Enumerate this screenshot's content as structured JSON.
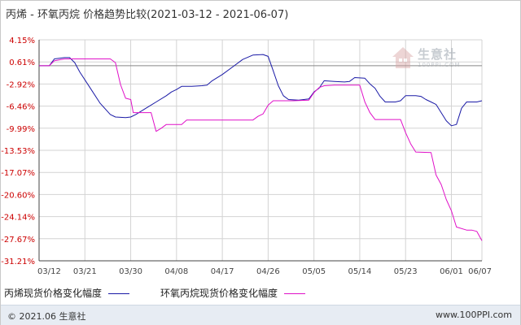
{
  "title": "丙烯 - 环氧丙烷 价格趋势比较(2021-03-12 - 2021-06-07)",
  "footer": {
    "copyright": "© 2021.06 生意社",
    "site": "www.100PPI.com"
  },
  "watermark": {
    "brand": "生意社",
    "url": "100PPI.COM"
  },
  "colors": {
    "series1": "#1a1aa6",
    "series2": "#e010c8",
    "grid": "#d3d3d3",
    "zero_line": "#888888",
    "axis": "#444444",
    "tick_label": "#cc0000"
  },
  "chart_data": {
    "type": "line",
    "x_labels": [
      "03/12",
      "03/21",
      "03/30",
      "04/08",
      "04/17",
      "04/26",
      "05/05",
      "05/14",
      "05/23",
      "06/01",
      "06/07"
    ],
    "x_days": [
      0,
      9,
      18,
      27,
      36,
      45,
      54,
      63,
      72,
      81,
      87
    ],
    "y_ticks": [
      4.15,
      0.61,
      -2.92,
      -6.46,
      -9.99,
      -13.53,
      -17.07,
      -20.6,
      -24.14,
      -27.67,
      -31.21
    ],
    "y_tick_labels": [
      "4.15%",
      "0.61%",
      "-2.92%",
      "-6.46%",
      "-9.99%",
      "-13.53%",
      "-17.07%",
      "-20.60%",
      "-24.14%",
      "-27.67%",
      "-31.21%"
    ],
    "ylim": [
      -31.21,
      4.15
    ],
    "xlim": [
      0,
      87
    ],
    "grid": true,
    "legend_position": "bottom",
    "series": [
      {
        "name": "丙烯现货价格变化幅度",
        "points": [
          [
            0,
            0
          ],
          [
            2,
            0
          ],
          [
            3,
            1.1
          ],
          [
            5,
            1.3
          ],
          [
            6,
            1.3
          ],
          [
            7,
            0.5
          ],
          [
            8,
            -1
          ],
          [
            10,
            -3.5
          ],
          [
            12,
            -6
          ],
          [
            14,
            -7.8
          ],
          [
            15,
            -8.2
          ],
          [
            17,
            -8.3
          ],
          [
            18,
            -8.2
          ],
          [
            19,
            -7.8
          ],
          [
            21,
            -6.8
          ],
          [
            23,
            -5.8
          ],
          [
            25,
            -4.8
          ],
          [
            26,
            -4.2
          ],
          [
            27,
            -3.8
          ],
          [
            28,
            -3.3
          ],
          [
            30,
            -3.3
          ],
          [
            32,
            -3.2
          ],
          [
            33,
            -3.1
          ],
          [
            34,
            -2.4
          ],
          [
            36,
            -1.4
          ],
          [
            38,
            -0.2
          ],
          [
            40,
            1.0
          ],
          [
            42,
            1.7
          ],
          [
            44,
            1.8
          ],
          [
            45,
            1.5
          ],
          [
            46,
            -0.8
          ],
          [
            47,
            -3.2
          ],
          [
            48,
            -4.8
          ],
          [
            49,
            -5.4
          ],
          [
            51,
            -5.5
          ],
          [
            53,
            -5.3
          ],
          [
            54,
            -4.2
          ],
          [
            55,
            -3.6
          ],
          [
            56,
            -2.4
          ],
          [
            58,
            -2.5
          ],
          [
            60,
            -2.6
          ],
          [
            61,
            -2.5
          ],
          [
            62,
            -1.9
          ],
          [
            64,
            -2.0
          ],
          [
            65,
            -2.9
          ],
          [
            66,
            -3.6
          ],
          [
            67,
            -4.9
          ],
          [
            68,
            -5.8
          ],
          [
            70,
            -5.8
          ],
          [
            71,
            -5.6
          ],
          [
            72,
            -4.8
          ],
          [
            74,
            -4.8
          ],
          [
            75,
            -4.9
          ],
          [
            76,
            -5.4
          ],
          [
            77,
            -5.8
          ],
          [
            78,
            -6.2
          ],
          [
            80,
            -8.8
          ],
          [
            81,
            -9.6
          ],
          [
            82,
            -9.4
          ],
          [
            83,
            -6.8
          ],
          [
            84,
            -5.8
          ],
          [
            86,
            -5.8
          ],
          [
            87,
            -5.6
          ]
        ]
      },
      {
        "name": "环氧丙烷现货价格变化幅度",
        "points": [
          [
            0,
            0
          ],
          [
            2,
            0
          ],
          [
            3,
            0.8
          ],
          [
            5,
            1.1
          ],
          [
            14,
            1.1
          ],
          [
            15,
            0.5
          ],
          [
            16,
            -3.0
          ],
          [
            17,
            -5.2
          ],
          [
            18,
            -5.4
          ],
          [
            18.5,
            -7.5
          ],
          [
            22,
            -7.5
          ],
          [
            23,
            -10.5
          ],
          [
            24,
            -10.0
          ],
          [
            25,
            -9.4
          ],
          [
            28,
            -9.4
          ],
          [
            29,
            -8.7
          ],
          [
            34,
            -8.7
          ],
          [
            38,
            -8.7
          ],
          [
            42,
            -8.7
          ],
          [
            43,
            -8.1
          ],
          [
            44,
            -7.7
          ],
          [
            45,
            -6.3
          ],
          [
            46,
            -5.6
          ],
          [
            50,
            -5.6
          ],
          [
            53,
            -5.5
          ],
          [
            54,
            -4.3
          ],
          [
            55,
            -3.5
          ],
          [
            56,
            -3.2
          ],
          [
            58,
            -3.1
          ],
          [
            63,
            -3.1
          ],
          [
            64,
            -5.8
          ],
          [
            65,
            -7.5
          ],
          [
            66,
            -8.6
          ],
          [
            71,
            -8.6
          ],
          [
            72,
            -10.7
          ],
          [
            73,
            -12.5
          ],
          [
            74,
            -13.8
          ],
          [
            77,
            -13.9
          ],
          [
            78,
            -17.5
          ],
          [
            79,
            -19.0
          ],
          [
            80,
            -21.4
          ],
          [
            81,
            -23.2
          ],
          [
            82,
            -25.8
          ],
          [
            84,
            -26.3
          ],
          [
            85,
            -26.3
          ],
          [
            86,
            -26.5
          ],
          [
            87,
            -28.0
          ]
        ]
      }
    ]
  }
}
